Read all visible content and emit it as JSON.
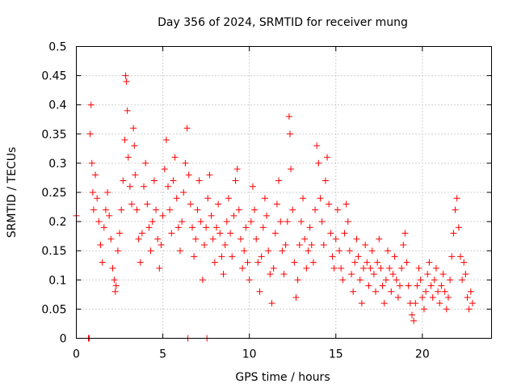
{
  "chart_data": {
    "type": "scatter",
    "title": "Day 356 of 2024, SRMTID for receiver mung",
    "xlabel": "GPS time / hours",
    "ylabel": "SRMTID / TECUs",
    "xlim": [
      0,
      24
    ],
    "ylim": [
      0,
      0.5
    ],
    "x_ticks": [
      0,
      5,
      10,
      15,
      20
    ],
    "x_tick_labels": [
      "0",
      "5",
      "10",
      "15",
      "20"
    ],
    "y_ticks": [
      0,
      0.05,
      0.1,
      0.15,
      0.2,
      0.25,
      0.3,
      0.35,
      0.4,
      0.45,
      0.5
    ],
    "y_tick_labels": [
      "0",
      "0.05",
      "0.1",
      "0.15",
      "0.2",
      "0.25",
      "0.3",
      "0.35",
      "0.4",
      "0.45",
      "0.5"
    ],
    "grid": true,
    "marker": "+",
    "color": "#ff0000",
    "series": [
      {
        "name": "SRMTID",
        "points": [
          [
            0.0,
            0.21
          ],
          [
            0.7,
            0.0
          ],
          [
            0.75,
            0.0
          ],
          [
            0.8,
            0.35
          ],
          [
            0.85,
            0.4
          ],
          [
            0.9,
            0.3
          ],
          [
            0.95,
            0.25
          ],
          [
            1.0,
            0.22
          ],
          [
            1.1,
            0.28
          ],
          [
            1.2,
            0.24
          ],
          [
            1.3,
            0.2
          ],
          [
            1.4,
            0.16
          ],
          [
            1.5,
            0.13
          ],
          [
            1.6,
            0.19
          ],
          [
            1.7,
            0.22
          ],
          [
            1.8,
            0.25
          ],
          [
            1.9,
            0.21
          ],
          [
            2.0,
            0.17
          ],
          [
            2.1,
            0.12
          ],
          [
            2.2,
            0.1
          ],
          [
            2.25,
            0.08
          ],
          [
            2.3,
            0.09
          ],
          [
            2.4,
            0.15
          ],
          [
            2.5,
            0.18
          ],
          [
            2.6,
            0.22
          ],
          [
            2.7,
            0.27
          ],
          [
            2.8,
            0.34
          ],
          [
            2.85,
            0.45
          ],
          [
            2.9,
            0.44
          ],
          [
            2.95,
            0.39
          ],
          [
            3.0,
            0.31
          ],
          [
            3.1,
            0.26
          ],
          [
            3.2,
            0.23
          ],
          [
            3.3,
            0.36
          ],
          [
            3.35,
            0.33
          ],
          [
            3.4,
            0.28
          ],
          [
            3.5,
            0.22
          ],
          [
            3.6,
            0.17
          ],
          [
            3.7,
            0.13
          ],
          [
            3.8,
            0.18
          ],
          [
            3.9,
            0.26
          ],
          [
            4.0,
            0.3
          ],
          [
            4.1,
            0.23
          ],
          [
            4.2,
            0.19
          ],
          [
            4.3,
            0.15
          ],
          [
            4.4,
            0.2
          ],
          [
            4.5,
            0.27
          ],
          [
            4.6,
            0.22
          ],
          [
            4.7,
            0.17
          ],
          [
            4.8,
            0.12
          ],
          [
            4.9,
            0.16
          ],
          [
            5.0,
            0.21
          ],
          [
            5.1,
            0.29
          ],
          [
            5.2,
            0.34
          ],
          [
            5.3,
            0.26
          ],
          [
            5.4,
            0.22
          ],
          [
            5.5,
            0.18
          ],
          [
            5.6,
            0.27
          ],
          [
            5.7,
            0.31
          ],
          [
            5.8,
            0.24
          ],
          [
            5.9,
            0.19
          ],
          [
            6.0,
            0.15
          ],
          [
            6.1,
            0.2
          ],
          [
            6.2,
            0.25
          ],
          [
            6.3,
            0.3
          ],
          [
            6.4,
            0.36
          ],
          [
            6.45,
            0.0
          ],
          [
            6.5,
            0.28
          ],
          [
            6.6,
            0.23
          ],
          [
            6.7,
            0.19
          ],
          [
            6.8,
            0.14
          ],
          [
            6.9,
            0.17
          ],
          [
            7.0,
            0.22
          ],
          [
            7.1,
            0.27
          ],
          [
            7.2,
            0.2
          ],
          [
            7.3,
            0.1
          ],
          [
            7.4,
            0.16
          ],
          [
            7.5,
            0.19
          ],
          [
            7.55,
            0.0
          ],
          [
            7.6,
            0.24
          ],
          [
            7.7,
            0.28
          ],
          [
            7.8,
            0.21
          ],
          [
            7.9,
            0.17
          ],
          [
            8.0,
            0.13
          ],
          [
            8.1,
            0.19
          ],
          [
            8.2,
            0.23
          ],
          [
            8.3,
            0.18
          ],
          [
            8.4,
            0.14
          ],
          [
            8.5,
            0.11
          ],
          [
            8.6,
            0.16
          ],
          [
            8.7,
            0.2
          ],
          [
            8.8,
            0.24
          ],
          [
            8.9,
            0.18
          ],
          [
            9.0,
            0.14
          ],
          [
            9.1,
            0.21
          ],
          [
            9.2,
            0.27
          ],
          [
            9.3,
            0.29
          ],
          [
            9.4,
            0.22
          ],
          [
            9.5,
            0.17
          ],
          [
            9.6,
            0.12
          ],
          [
            9.7,
            0.15
          ],
          [
            9.8,
            0.19
          ],
          [
            9.9,
            0.13
          ],
          [
            10.0,
            0.1
          ],
          [
            10.1,
            0.2
          ],
          [
            10.2,
            0.26
          ],
          [
            10.3,
            0.22
          ],
          [
            10.4,
            0.17
          ],
          [
            10.5,
            0.13
          ],
          [
            10.6,
            0.08
          ],
          [
            10.7,
            0.14
          ],
          [
            10.8,
            0.19
          ],
          [
            10.9,
            0.24
          ],
          [
            11.0,
            0.21
          ],
          [
            11.1,
            0.15
          ],
          [
            11.2,
            0.11
          ],
          [
            11.3,
            0.06
          ],
          [
            11.4,
            0.12
          ],
          [
            11.5,
            0.18
          ],
          [
            11.6,
            0.23
          ],
          [
            11.7,
            0.27
          ],
          [
            11.8,
            0.2
          ],
          [
            11.9,
            0.15
          ],
          [
            12.0,
            0.11
          ],
          [
            12.1,
            0.16
          ],
          [
            12.2,
            0.2
          ],
          [
            12.3,
            0.38
          ],
          [
            12.35,
            0.35
          ],
          [
            12.4,
            0.29
          ],
          [
            12.5,
            0.22
          ],
          [
            12.6,
            0.13
          ],
          [
            12.7,
            0.07
          ],
          [
            12.8,
            0.1
          ],
          [
            12.9,
            0.16
          ],
          [
            13.0,
            0.2
          ],
          [
            13.1,
            0.24
          ],
          [
            13.2,
            0.17
          ],
          [
            13.3,
            0.12
          ],
          [
            13.4,
            0.15
          ],
          [
            13.5,
            0.19
          ],
          [
            13.6,
            0.16
          ],
          [
            13.7,
            0.13
          ],
          [
            13.8,
            0.22
          ],
          [
            13.9,
            0.33
          ],
          [
            14.0,
            0.3
          ],
          [
            14.1,
            0.24
          ],
          [
            14.2,
            0.2
          ],
          [
            14.3,
            0.16
          ],
          [
            14.4,
            0.27
          ],
          [
            14.5,
            0.31
          ],
          [
            14.6,
            0.23
          ],
          [
            14.7,
            0.18
          ],
          [
            14.8,
            0.14
          ],
          [
            14.9,
            0.12
          ],
          [
            15.0,
            0.17
          ],
          [
            15.1,
            0.22
          ],
          [
            15.2,
            0.15
          ],
          [
            15.3,
            0.12
          ],
          [
            15.4,
            0.1
          ],
          [
            15.5,
            0.18
          ],
          [
            15.6,
            0.23
          ],
          [
            15.7,
            0.2
          ],
          [
            15.8,
            0.15
          ],
          [
            15.9,
            0.11
          ],
          [
            16.0,
            0.08
          ],
          [
            16.1,
            0.13
          ],
          [
            16.2,
            0.17
          ],
          [
            16.3,
            0.14
          ],
          [
            16.4,
            0.1
          ],
          [
            16.5,
            0.06
          ],
          [
            16.6,
            0.12
          ],
          [
            16.7,
            0.16
          ],
          [
            16.8,
            0.13
          ],
          [
            16.9,
            0.09
          ],
          [
            17.0,
            0.12
          ],
          [
            17.1,
            0.15
          ],
          [
            17.2,
            0.11
          ],
          [
            17.3,
            0.08
          ],
          [
            17.4,
            0.13
          ],
          [
            17.5,
            0.17
          ],
          [
            17.6,
            0.12
          ],
          [
            17.7,
            0.09
          ],
          [
            17.8,
            0.06
          ],
          [
            17.9,
            0.1
          ],
          [
            18.0,
            0.15
          ],
          [
            18.1,
            0.12
          ],
          [
            18.2,
            0.08
          ],
          [
            18.3,
            0.11
          ],
          [
            18.4,
            0.14
          ],
          [
            18.5,
            0.1
          ],
          [
            18.6,
            0.07
          ],
          [
            18.7,
            0.09
          ],
          [
            18.8,
            0.12
          ],
          [
            18.9,
            0.16
          ],
          [
            19.0,
            0.18
          ],
          [
            19.1,
            0.13
          ],
          [
            19.2,
            0.09
          ],
          [
            19.3,
            0.06
          ],
          [
            19.4,
            0.04
          ],
          [
            19.5,
            0.03
          ],
          [
            19.6,
            0.06
          ],
          [
            19.7,
            0.09
          ],
          [
            19.8,
            0.12
          ],
          [
            19.9,
            0.1
          ],
          [
            20.0,
            0.07
          ],
          [
            20.1,
            0.05
          ],
          [
            20.2,
            0.08
          ],
          [
            20.3,
            0.11
          ],
          [
            20.4,
            0.13
          ],
          [
            20.5,
            0.09
          ],
          [
            20.6,
            0.07
          ],
          [
            20.7,
            0.1
          ],
          [
            20.8,
            0.12
          ],
          [
            20.9,
            0.08
          ],
          [
            21.0,
            0.06
          ],
          [
            21.1,
            0.09
          ],
          [
            21.2,
            0.11
          ],
          [
            21.3,
            0.08
          ],
          [
            21.4,
            0.05
          ],
          [
            21.5,
            0.07
          ],
          [
            21.6,
            0.1
          ],
          [
            21.7,
            0.14
          ],
          [
            21.8,
            0.18
          ],
          [
            21.9,
            0.22
          ],
          [
            22.0,
            0.24
          ],
          [
            22.1,
            0.19
          ],
          [
            22.2,
            0.14
          ],
          [
            22.3,
            0.1
          ],
          [
            22.4,
            0.13
          ],
          [
            22.5,
            0.11
          ],
          [
            22.6,
            0.07
          ],
          [
            22.7,
            0.05
          ],
          [
            22.8,
            0.08
          ],
          [
            22.9,
            0.06
          ]
        ]
      }
    ]
  }
}
